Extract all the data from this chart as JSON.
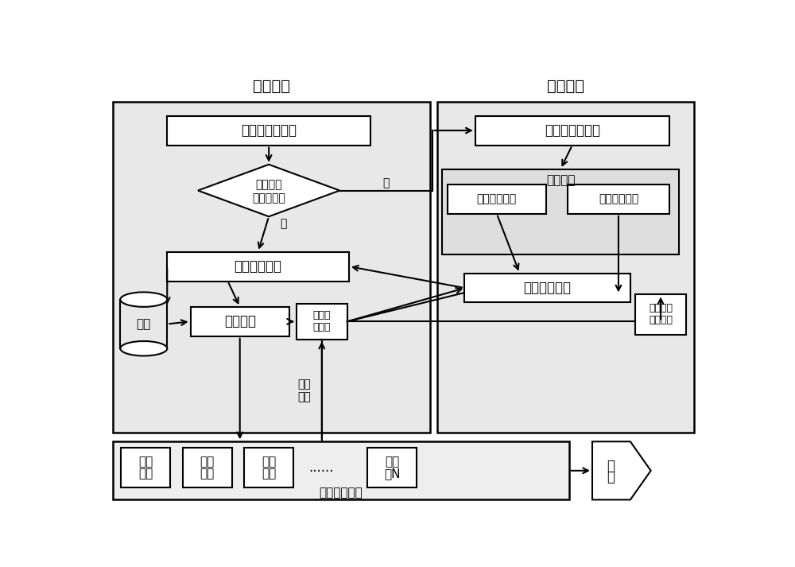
{
  "white": "#ffffff",
  "light_gray": "#e8e8e8",
  "mid_gray": "#d8d8d8",
  "dark_gray": "#c0c0c0",
  "black": "#000000",
  "title_shebi": "监控设备",
  "title_jiedian": "监控节点",
  "box_jiqun": "集群监控端管理",
  "diamond_line1": "监控节点",
  "diamond_line2": "已初始化？",
  "label_fou": "否",
  "label_shi": "是",
  "box_shoji": "数据收集模块",
  "box_ruku": "入库",
  "box_wajue": "数据挖掘",
  "box_gaoji_req_line1": "高级数",
  "box_gaoji_req_line2": "据请求",
  "box_jd_init": "监控节点初始化",
  "box_caiji_label": "数据采集",
  "box_jiben_cj": "基本数据采集",
  "box_gaoji_cj": "高级数据采集",
  "box_fasong": "数据发送模块",
  "box_gaoji_ctrl_line1": "高级数据",
  "box_gaoji_ctrl_line2": "采集控制",
  "box_zhineng": "智能展示模块",
  "box_user1_line1": "用户",
  "box_user1_line2": "群一",
  "box_user2_line1": "用户",
  "box_user2_line2": "群二",
  "box_user3_line1": "用户",
  "box_user3_line2": "群三",
  "box_dots": "......",
  "box_userN_line1": "用户",
  "box_userN_line2": "群N",
  "box_baojing_line1": "报",
  "box_baojing_line2": "警",
  "label_yonghu_line1": "用户",
  "label_yonghu_line2": "请求"
}
